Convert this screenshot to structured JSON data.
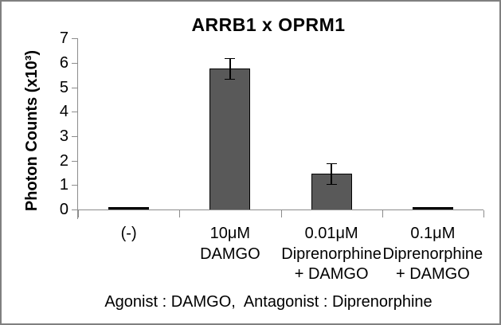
{
  "window": {
    "background": "#FFFFFF",
    "border_color": "#808080"
  },
  "chart_data": {
    "type": "bar",
    "title": "ARRB1 x OPRM1",
    "ylabel": "Photon Counts (x10³)",
    "xlabel": "",
    "ylim": [
      0,
      7
    ],
    "yticks": [
      0,
      1,
      2,
      3,
      4,
      5,
      6,
      7
    ],
    "grid": false,
    "legend_position": "none",
    "categories": [
      "(-)",
      "10μM DAMGO",
      "0.01μM Diprenorphine + DAMGO",
      "0.1μM Diprenorphine + DAMGO"
    ],
    "category_label_lines": [
      [
        "(-)"
      ],
      [
        "10μM DAMGO"
      ],
      [
        "0.01μM",
        "Diprenorphine",
        "+ DAMGO"
      ],
      [
        "0.1μM",
        "Diprenorphine",
        "+ DAMGO"
      ]
    ],
    "values": [
      0.05,
      5.75,
      1.45,
      0.05
    ],
    "errors": [
      0,
      0.45,
      0.45,
      0
    ],
    "bar_color": "#595959",
    "bar_border_color": "#000000",
    "error_bar_color": "#000000",
    "axis_color": "#8C8C8C",
    "text_color": "#000000"
  },
  "caption": "Agonist : DAMGO,  Antagonist : Diprenorphine"
}
